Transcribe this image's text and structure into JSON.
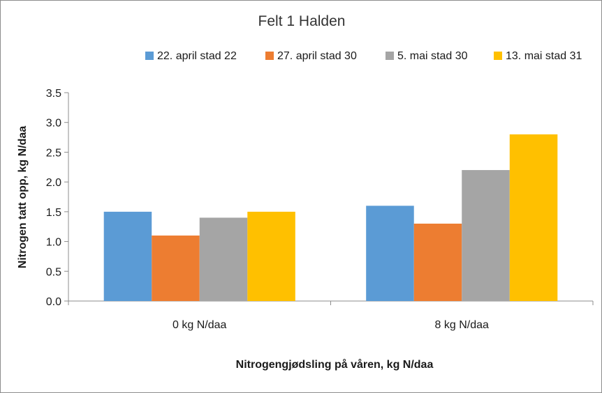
{
  "chart_data": {
    "type": "bar",
    "title": "Felt 1 Halden",
    "xlabel": "Nitrogengjødsling på våren, kg N/daa",
    "ylabel": "Nitrogen tatt opp, kg N/daa",
    "categories": [
      "0 kg N/daa",
      "8 kg N/daa"
    ],
    "series": [
      {
        "name": "22. april stad 22",
        "values": [
          1.5,
          1.6
        ],
        "color": "#5b9bd5"
      },
      {
        "name": "27. april stad 30",
        "values": [
          1.1,
          1.3
        ],
        "color": "#ed7d31"
      },
      {
        "name": "5. mai stad 30",
        "values": [
          1.4,
          2.2
        ],
        "color": "#a5a5a5"
      },
      {
        "name": "13. mai stad 31",
        "values": [
          1.5,
          2.8
        ],
        "color": "#ffc000"
      }
    ],
    "ylim": [
      0,
      3.5
    ],
    "yticks": [
      "0.0",
      "0.5",
      "1.0",
      "1.5",
      "2.0",
      "2.5",
      "3.0",
      "3.5"
    ],
    "grid": false,
    "legend_position": "top-right"
  }
}
